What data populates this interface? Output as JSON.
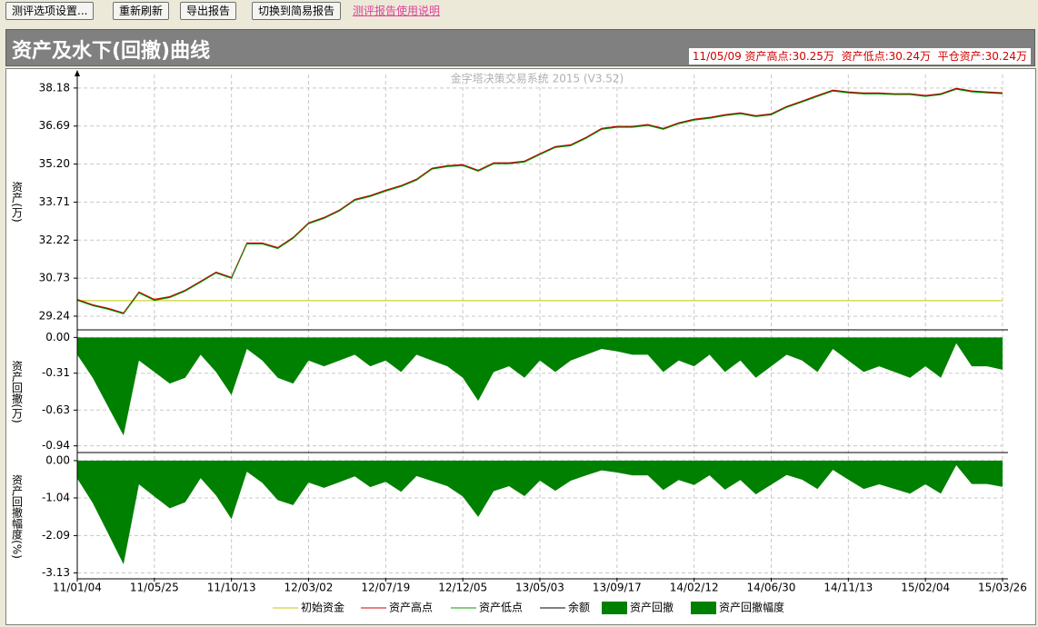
{
  "toolbar": {
    "buttons": [
      "测评选项设置...",
      "重新刷新",
      "导出报告",
      "切换到简易报告"
    ],
    "link": "测评报告使用说明"
  },
  "header": {
    "title": "资产及水下(回撤)曲线",
    "info": "11/05/09 资产高点:30.25万  资产低点:30.24万  平仓资产:30.24万"
  },
  "chart_data": [
    {
      "type": "line",
      "watermark": "金字塔决策交易系统 2015 (V3.52)",
      "ylabel": "资产(万)",
      "grid": true,
      "categories": [
        "11/01/04",
        null,
        null,
        null,
        null,
        "11/05/25",
        null,
        null,
        null,
        null,
        "11/10/13",
        null,
        null,
        null,
        null,
        "12/03/02",
        null,
        null,
        null,
        null,
        "12/07/19",
        null,
        null,
        null,
        null,
        "12/12/05",
        null,
        null,
        null,
        null,
        "13/05/03",
        null,
        null,
        null,
        null,
        "13/09/17",
        null,
        null,
        null,
        null,
        "14/02/12",
        null,
        null,
        null,
        null,
        "14/06/30",
        null,
        null,
        null,
        null,
        "14/11/13",
        null,
        null,
        null,
        null,
        "15/02/04",
        null,
        null,
        null,
        null,
        "15/03/26"
      ],
      "ylim": [
        28.74,
        38.71
      ],
      "yticks": [
        29.24,
        30.73,
        32.22,
        33.71,
        {
          "value": 35.2,
          "label": "35.20"
        },
        36.69,
        38.18
      ],
      "series": [
        {
          "name": "初始资金",
          "color": "#c8c800",
          "value": 29.85
        },
        {
          "name": "资产高点",
          "color": "#d00000",
          "values": [
            29.9,
            29.69,
            29.55,
            29.37,
            30.19,
            29.9,
            30.01,
            30.26,
            30.61,
            30.97,
            30.76,
            32.11,
            32.11,
            31.93,
            32.33,
            32.9,
            33.11,
            33.4,
            33.82,
            33.97,
            34.18,
            34.36,
            34.61,
            35.04,
            35.14,
            35.18,
            34.96,
            35.25,
            35.25,
            35.32,
            35.61,
            35.89,
            35.96,
            36.25,
            36.6,
            36.68,
            36.68,
            36.75,
            36.6,
            36.82,
            36.96,
            37.03,
            37.14,
            37.21,
            37.1,
            37.17,
            37.46,
            37.67,
            37.89,
            38.1,
            38.03,
            37.99,
            37.99,
            37.96,
            37.96,
            37.89,
            37.96,
            38.17,
            38.07,
            38.03,
            38.0
          ]
        },
        {
          "name": "资产低点",
          "color": "#00a000",
          "values": [
            29.86,
            29.65,
            29.51,
            29.33,
            30.15,
            29.86,
            29.97,
            30.22,
            30.57,
            30.93,
            30.72,
            32.07,
            32.07,
            31.89,
            32.29,
            32.86,
            33.07,
            33.36,
            33.78,
            33.93,
            34.14,
            34.32,
            34.57,
            35.0,
            35.1,
            35.14,
            34.92,
            35.21,
            35.21,
            35.28,
            35.57,
            35.85,
            35.92,
            36.21,
            36.56,
            36.64,
            36.64,
            36.71,
            36.56,
            36.78,
            36.92,
            36.99,
            37.1,
            37.17,
            37.06,
            37.13,
            37.42,
            37.63,
            37.85,
            38.06,
            37.99,
            37.95,
            37.95,
            37.92,
            37.92,
            37.85,
            37.92,
            38.13,
            38.03,
            37.99,
            37.96
          ]
        },
        {
          "name": "余额",
          "color": "#000000",
          "values": [
            29.88,
            29.67,
            29.53,
            29.35,
            30.17,
            29.88,
            29.99,
            30.24,
            30.59,
            30.95,
            30.74,
            32.09,
            32.09,
            31.91,
            32.31,
            32.88,
            33.09,
            33.38,
            33.8,
            33.95,
            34.16,
            34.34,
            34.59,
            35.02,
            35.12,
            35.16,
            34.94,
            35.23,
            35.23,
            35.3,
            35.59,
            35.87,
            35.94,
            36.23,
            36.58,
            36.66,
            36.66,
            36.73,
            36.58,
            36.8,
            36.94,
            37.01,
            37.12,
            37.19,
            37.08,
            37.15,
            37.44,
            37.65,
            37.87,
            38.08,
            38.01,
            37.97,
            37.97,
            37.94,
            37.94,
            37.87,
            37.94,
            38.15,
            38.05,
            38.01,
            37.98
          ]
        }
      ]
    },
    {
      "type": "area",
      "ylabel": "资产回撤(万)",
      "grid": true,
      "ylim": [
        -0.99,
        0.05
      ],
      "yticks": [
        {
          "value": 0,
          "label": "0.00"
        },
        -0.31,
        -0.63,
        -0.94
      ],
      "series": [
        {
          "name": "资产回撤",
          "color": "#008000",
          "values": [
            -0.15,
            -0.35,
            -0.6,
            -0.85,
            -0.2,
            -0.3,
            -0.4,
            -0.35,
            -0.15,
            -0.3,
            -0.5,
            -0.1,
            -0.2,
            -0.35,
            -0.4,
            -0.2,
            -0.25,
            -0.2,
            -0.15,
            -0.25,
            -0.2,
            -0.3,
            -0.15,
            -0.2,
            -0.25,
            -0.35,
            -0.55,
            -0.3,
            -0.25,
            -0.35,
            -0.2,
            -0.3,
            -0.2,
            -0.15,
            -0.1,
            -0.12,
            -0.15,
            -0.15,
            -0.3,
            -0.2,
            -0.25,
            -0.15,
            -0.3,
            -0.2,
            -0.35,
            -0.25,
            -0.15,
            -0.2,
            -0.3,
            -0.1,
            -0.2,
            -0.3,
            -0.25,
            -0.3,
            -0.35,
            -0.25,
            -0.35,
            -0.05,
            -0.25,
            -0.25,
            -0.28
          ]
        }
      ]
    },
    {
      "type": "area",
      "ylabel": "资产回撤幅度(%)",
      "grid": true,
      "ylim": [
        -3.27,
        0.15
      ],
      "yticks": [
        {
          "value": 0,
          "label": "0.00"
        },
        -1.04,
        -2.09,
        -3.13
      ],
      "series": [
        {
          "name": "资产回撤幅度",
          "color": "#008000",
          "values": [
            -0.5,
            -1.18,
            -2.03,
            -2.89,
            -0.66,
            -1.0,
            -1.33,
            -1.16,
            -0.49,
            -0.97,
            -1.63,
            -0.31,
            -0.62,
            -1.1,
            -1.24,
            -0.61,
            -0.76,
            -0.6,
            -0.44,
            -0.74,
            -0.59,
            -0.87,
            -0.43,
            -0.57,
            -0.71,
            -1.0,
            -1.57,
            -0.85,
            -0.71,
            -0.99,
            -0.56,
            -0.84,
            -0.56,
            -0.41,
            -0.27,
            -0.33,
            -0.41,
            -0.41,
            -0.82,
            -0.54,
            -0.68,
            -0.41,
            -0.81,
            -0.54,
            -0.94,
            -0.67,
            -0.4,
            -0.53,
            -0.79,
            -0.26,
            -0.53,
            -0.79,
            -0.66,
            -0.79,
            -0.92,
            -0.66,
            -0.92,
            -0.13,
            -0.65,
            -0.65,
            -0.73
          ]
        }
      ]
    }
  ]
}
